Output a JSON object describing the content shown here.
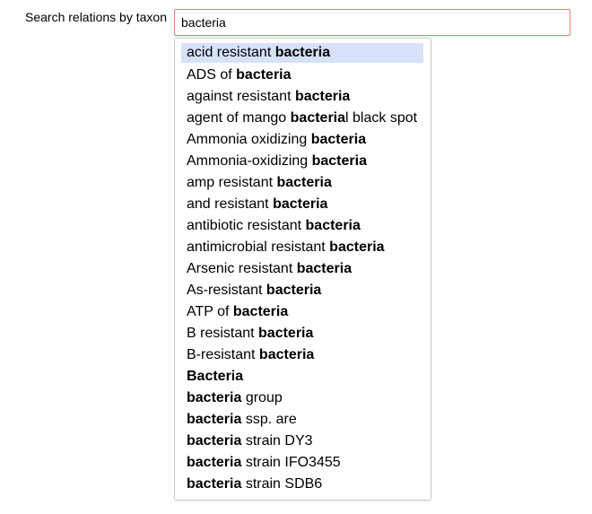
{
  "search": {
    "label": "Search relations by taxon",
    "value": "bacteria"
  },
  "suggestions": [
    {
      "pre": "acid resistant ",
      "match": "bacteria",
      "post": ""
    },
    {
      "pre": "ADS of ",
      "match": "bacteria",
      "post": ""
    },
    {
      "pre": "against resistant ",
      "match": "bacteria",
      "post": ""
    },
    {
      "pre": "agent of mango ",
      "match": "bacteria",
      "post": "l black spot"
    },
    {
      "pre": "Ammonia oxidizing ",
      "match": "bacteria",
      "post": ""
    },
    {
      "pre": "Ammonia-oxidizing ",
      "match": "bacteria",
      "post": ""
    },
    {
      "pre": "amp resistant ",
      "match": "bacteria",
      "post": ""
    },
    {
      "pre": "and resistant ",
      "match": "bacteria",
      "post": ""
    },
    {
      "pre": "antibiotic resistant ",
      "match": "bacteria",
      "post": ""
    },
    {
      "pre": "antimicrobial resistant ",
      "match": "bacteria",
      "post": ""
    },
    {
      "pre": "Arsenic resistant ",
      "match": "bacteria",
      "post": ""
    },
    {
      "pre": "As-resistant ",
      "match": "bacteria",
      "post": ""
    },
    {
      "pre": "ATP of ",
      "match": "bacteria",
      "post": ""
    },
    {
      "pre": "B resistant ",
      "match": "bacteria",
      "post": ""
    },
    {
      "pre": "B-resistant ",
      "match": "bacteria",
      "post": ""
    },
    {
      "pre": "",
      "match": "Bacteria",
      "post": ""
    },
    {
      "pre": "",
      "match": "bacteria",
      "post": " group"
    },
    {
      "pre": "",
      "match": "bacteria",
      "post": " ssp. are"
    },
    {
      "pre": "",
      "match": "bacteria",
      "post": " strain DY3"
    },
    {
      "pre": "",
      "match": "bacteria",
      "post": " strain IFO3455"
    },
    {
      "pre": "",
      "match": "bacteria",
      "post": " strain SDB6"
    }
  ],
  "active_index": 0,
  "colors": {
    "input_border": "#e0826e",
    "active_bg": "#d6e2f9"
  }
}
